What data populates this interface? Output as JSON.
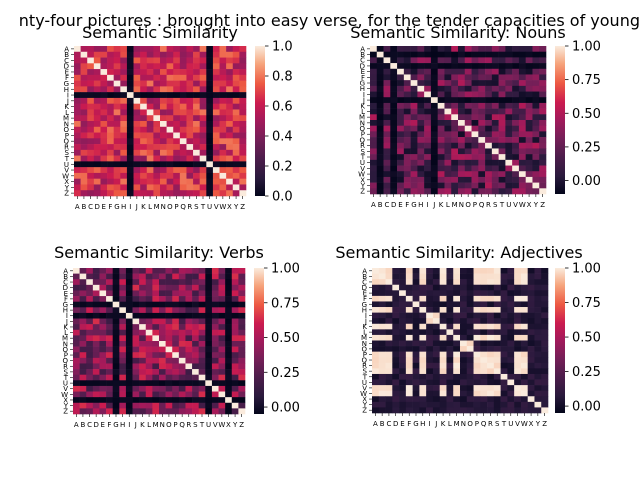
{
  "figure": {
    "suptitle": "Twenty-four pictures : brought into easy verse, for the tender capacities of young children",
    "suptitle_visible": "nty-four pictures : brought into easy verse, for the tender capacities of young"
  },
  "chart_data": [
    {
      "type": "heatmap",
      "title": "Semantic Similarity",
      "x_labels": [
        "A",
        "B",
        "C",
        "D",
        "E",
        "F",
        "G",
        "H",
        "I",
        "J",
        "K",
        "L",
        "M",
        "N",
        "O",
        "P",
        "Q",
        "R",
        "S",
        "T",
        "U",
        "V",
        "W",
        "X",
        "Y",
        "Z"
      ],
      "y_labels": [
        "A",
        "B",
        "C",
        "D",
        "E",
        "F",
        "G",
        "H",
        "I",
        "J",
        "K",
        "L",
        "M",
        "N",
        "O",
        "P",
        "Q",
        "R",
        "S",
        "T",
        "U",
        "V",
        "W",
        "X",
        "Y",
        "Z"
      ],
      "colorbar": {
        "ticks": [
          "0.0",
          "0.2",
          "0.4",
          "0.6",
          "0.8",
          "1.0"
        ],
        "tick_values": [
          0,
          0.2,
          0.4,
          0.6,
          0.8,
          1.0
        ],
        "vmin": 0,
        "vmax": 1
      },
      "diagonal": 1.0,
      "near_zero_rows": [
        "I",
        "U"
      ],
      "near_zero_cols": [
        "I",
        "U"
      ],
      "typical_off_diagonal_range": [
        0.45,
        0.8
      ],
      "seed": 11
    },
    {
      "type": "heatmap",
      "title": "Semantic Similarity: Nouns",
      "x_labels": [
        "A",
        "B",
        "C",
        "D",
        "E",
        "F",
        "G",
        "H",
        "I",
        "J",
        "K",
        "L",
        "M",
        "N",
        "O",
        "P",
        "Q",
        "R",
        "S",
        "T",
        "U",
        "V",
        "W",
        "X",
        "Y",
        "Z"
      ],
      "y_labels": [
        "A",
        "B",
        "C",
        "D",
        "E",
        "F",
        "G",
        "H",
        "I",
        "J",
        "K",
        "L",
        "M",
        "N",
        "O",
        "P",
        "Q",
        "R",
        "S",
        "T",
        "U",
        "V",
        "W",
        "X",
        "Y",
        "Z"
      ],
      "colorbar": {
        "ticks": [
          "0.00",
          "0.25",
          "0.50",
          "0.75",
          "1.00"
        ],
        "tick_values": [
          0,
          0.25,
          0.5,
          0.75,
          1.0
        ],
        "vmin": -0.1,
        "vmax": 1.0
      },
      "diagonal": 1.0,
      "near_zero_rows": [
        "B",
        "D",
        "J"
      ],
      "near_zero_cols": [
        "B",
        "D",
        "J"
      ],
      "typical_off_diagonal_range": [
        -0.05,
        0.5
      ],
      "seed": 23
    },
    {
      "type": "heatmap",
      "title": "Semantic Similarity: Verbs",
      "x_labels": [
        "A",
        "B",
        "C",
        "D",
        "E",
        "F",
        "G",
        "H",
        "I",
        "J",
        "K",
        "L",
        "M",
        "N",
        "O",
        "P",
        "Q",
        "R",
        "S",
        "T",
        "U",
        "V",
        "W",
        "X",
        "Y",
        "Z"
      ],
      "y_labels": [
        "A",
        "B",
        "C",
        "D",
        "E",
        "F",
        "G",
        "H",
        "I",
        "J",
        "K",
        "L",
        "M",
        "N",
        "O",
        "P",
        "Q",
        "R",
        "S",
        "T",
        "U",
        "V",
        "W",
        "X",
        "Y",
        "Z"
      ],
      "colorbar": {
        "ticks": [
          "0.00",
          "0.25",
          "0.50",
          "0.75",
          "1.00"
        ],
        "tick_values": [
          0,
          0.25,
          0.5,
          0.75,
          1.0
        ],
        "vmin": -0.05,
        "vmax": 1.0
      },
      "diagonal": 1.0,
      "near_zero_rows": [
        "G",
        "I",
        "U",
        "X"
      ],
      "near_zero_cols": [
        "G",
        "I",
        "U",
        "X"
      ],
      "typical_off_diagonal_range": [
        0.15,
        0.65
      ],
      "seed": 37
    },
    {
      "type": "heatmap",
      "title": "Semantic Similarity: Adjectives",
      "x_labels": [
        "A",
        "B",
        "C",
        "D",
        "E",
        "F",
        "G",
        "H",
        "I",
        "J",
        "K",
        "L",
        "M",
        "N",
        "O",
        "P",
        "Q",
        "R",
        "S",
        "T",
        "U",
        "V",
        "W",
        "X",
        "Y",
        "Z"
      ],
      "y_labels": [
        "A",
        "B",
        "C",
        "D",
        "E",
        "F",
        "G",
        "H",
        "I",
        "J",
        "K",
        "L",
        "M",
        "N",
        "O",
        "P",
        "Q",
        "R",
        "S",
        "T",
        "U",
        "V",
        "W",
        "X",
        "Y",
        "Z"
      ],
      "colorbar": {
        "ticks": [
          "0.00",
          "0.25",
          "0.50",
          "0.75",
          "1.00"
        ],
        "tick_values": [
          0,
          0.25,
          0.5,
          0.75,
          1.0
        ],
        "vmin": -0.05,
        "vmax": 1.0
      },
      "diagonal": 1.0,
      "block_groups": [
        [
          "A",
          "B",
          "C",
          "F",
          "H",
          "K",
          "M",
          "P",
          "Q",
          "R",
          "S",
          "V",
          "W"
        ],
        [
          "I",
          "J"
        ],
        [
          "N",
          "O"
        ]
      ],
      "block_value": 1.0,
      "cross_value": 0.0,
      "seed": 51
    }
  ]
}
